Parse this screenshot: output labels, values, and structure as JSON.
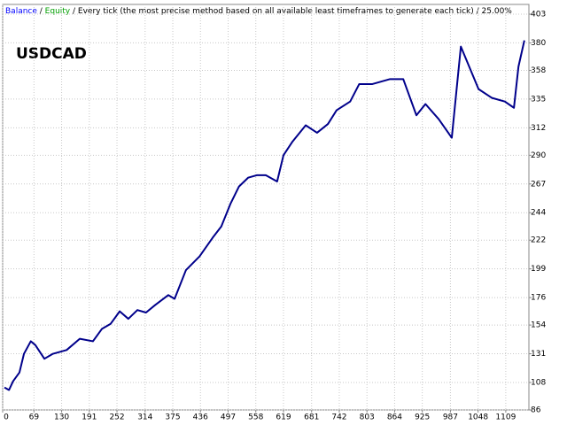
{
  "chart_data": {
    "type": "line",
    "header": [
      {
        "text": "Balance",
        "color": "#0000ff"
      },
      {
        "text": "Equity",
        "color": "#00a000"
      },
      {
        "text": "Every tick (the most precise method based on all available least timeframes to generate each tick)",
        "color": "#000000"
      },
      {
        "text": "25.00%",
        "color": "#000000"
      }
    ],
    "separator": " / ",
    "annotation": "USDCAD",
    "x": [
      4,
      14,
      23,
      37,
      47,
      62,
      72,
      92,
      111,
      141,
      170,
      199,
      219,
      238,
      258,
      277,
      297,
      316,
      336,
      365,
      379,
      404,
      434,
      463,
      482,
      502,
      521,
      541,
      560,
      580,
      605,
      619,
      639,
      668,
      693,
      717,
      736,
      766,
      786,
      815,
      854,
      883,
      912,
      932,
      961,
      990,
      1010,
      1049,
      1078,
      1107,
      1127,
      1137,
      1150
    ],
    "series": [
      {
        "name": "Balance",
        "color": "#00008b",
        "values": [
          104,
          102,
          109,
          116,
          131,
          141,
          138,
          127,
          131,
          134,
          143,
          141,
          151,
          155,
          165,
          159,
          166,
          164,
          170,
          178,
          175,
          198,
          209,
          224,
          233,
          251,
          265,
          272,
          274,
          274,
          269,
          290,
          301,
          314,
          308,
          315,
          326,
          333,
          347,
          347,
          351,
          351,
          322,
          331,
          319,
          304,
          377,
          343,
          336,
          333,
          328,
          361,
          382
        ]
      }
    ],
    "xlim": [
      0,
      1160
    ],
    "ylim": [
      86,
      403
    ],
    "xticks": [
      0,
      69,
      130,
      191,
      252,
      314,
      375,
      436,
      497,
      558,
      619,
      681,
      742,
      803,
      864,
      925,
      987,
      1048,
      1109
    ],
    "yticks": [
      403,
      380,
      358,
      335,
      312,
      290,
      267,
      244,
      222,
      199,
      176,
      154,
      131,
      108,
      86
    ],
    "grid": true
  }
}
